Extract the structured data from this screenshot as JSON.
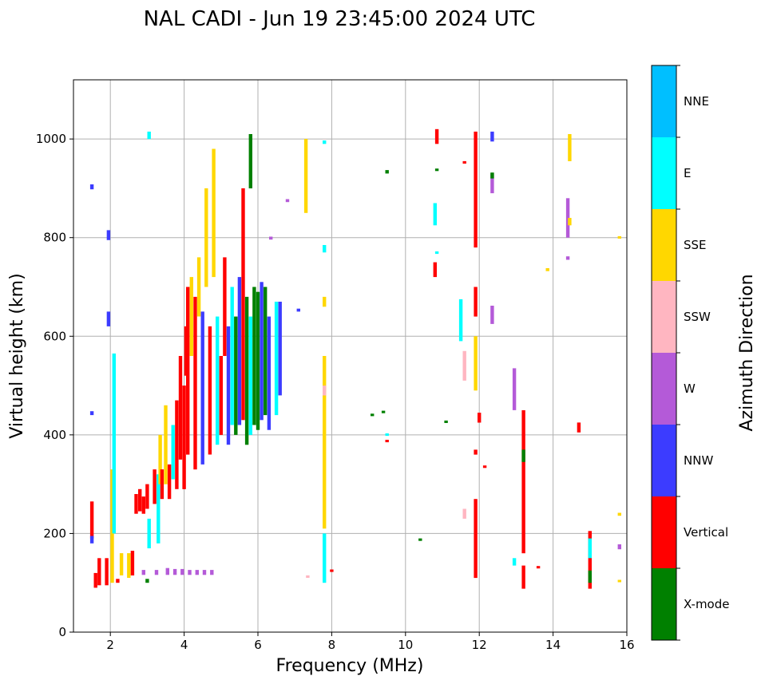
{
  "chart_data": {
    "type": "scatter",
    "title": "NAL CADI - Jun 19 23:45:00 2024 UTC",
    "xlabel": "Frequency (MHz)",
    "ylabel": "Virtual height (km)",
    "xlim": [
      1,
      16
    ],
    "ylim": [
      0,
      1120
    ],
    "xticks": [
      2,
      4,
      6,
      8,
      10,
      12,
      14,
      16
    ],
    "yticks": [
      0,
      200,
      400,
      600,
      800,
      1000
    ],
    "grid": true,
    "colorbar": {
      "label": "Azimuth Direction",
      "categories": [
        {
          "name": "X-mode",
          "color": "#008000"
        },
        {
          "name": "Vertical",
          "color": "#ff0000"
        },
        {
          "name": "NNW",
          "color": "#3c3cff"
        },
        {
          "name": "W",
          "color": "#b45ad8"
        },
        {
          "name": "SSW",
          "color": "#ffb6c1"
        },
        {
          "name": "SSE",
          "color": "#ffd700"
        },
        {
          "name": "E",
          "color": "#00ffff"
        },
        {
          "name": "NNE",
          "color": "#00bfff"
        }
      ]
    },
    "segments": [
      {
        "f": 1.5,
        "h0": 190,
        "h1": 265,
        "c": "Vertical"
      },
      {
        "f": 1.5,
        "h0": 180,
        "h1": 195,
        "c": "NNW"
      },
      {
        "f": 1.5,
        "h0": 440,
        "h1": 448,
        "c": "NNW"
      },
      {
        "f": 1.5,
        "h0": 898,
        "h1": 908,
        "c": "NNW"
      },
      {
        "f": 1.6,
        "h0": 90,
        "h1": 120,
        "c": "Vertical"
      },
      {
        "f": 1.7,
        "h0": 95,
        "h1": 150,
        "c": "Vertical"
      },
      {
        "f": 1.9,
        "h0": 95,
        "h1": 150,
        "c": "Vertical"
      },
      {
        "f": 1.95,
        "h0": 620,
        "h1": 650,
        "c": "NNW"
      },
      {
        "f": 1.95,
        "h0": 795,
        "h1": 815,
        "c": "NNW"
      },
      {
        "f": 2.05,
        "h0": 100,
        "h1": 330,
        "c": "SSE"
      },
      {
        "f": 2.1,
        "h0": 200,
        "h1": 565,
        "c": "E"
      },
      {
        "f": 2.2,
        "h0": 100,
        "h1": 108,
        "c": "Vertical"
      },
      {
        "f": 2.3,
        "h0": 115,
        "h1": 160,
        "c": "SSE"
      },
      {
        "f": 2.5,
        "h0": 110,
        "h1": 160,
        "c": "SSE"
      },
      {
        "f": 2.6,
        "h0": 115,
        "h1": 165,
        "c": "Vertical"
      },
      {
        "f": 2.7,
        "h0": 240,
        "h1": 280,
        "c": "Vertical"
      },
      {
        "f": 2.8,
        "h0": 245,
        "h1": 290,
        "c": "Vertical"
      },
      {
        "f": 2.9,
        "h0": 240,
        "h1": 275,
        "c": "Vertical"
      },
      {
        "f": 2.9,
        "h0": 116,
        "h1": 126,
        "c": "W"
      },
      {
        "f": 3.0,
        "h0": 250,
        "h1": 300,
        "c": "Vertical"
      },
      {
        "f": 3.0,
        "h0": 100,
        "h1": 108,
        "c": "X-mode"
      },
      {
        "f": 3.05,
        "h0": 170,
        "h1": 230,
        "c": "E"
      },
      {
        "f": 3.05,
        "h0": 1000,
        "h1": 1015,
        "c": "E"
      },
      {
        "f": 3.2,
        "h0": 260,
        "h1": 330,
        "c": "Vertical"
      },
      {
        "f": 3.25,
        "h0": 116,
        "h1": 126,
        "c": "W"
      },
      {
        "f": 3.3,
        "h0": 180,
        "h1": 320,
        "c": "E"
      },
      {
        "f": 3.35,
        "h0": 300,
        "h1": 400,
        "c": "SSE"
      },
      {
        "f": 3.4,
        "h0": 270,
        "h1": 330,
        "c": "Vertical"
      },
      {
        "f": 3.5,
        "h0": 300,
        "h1": 460,
        "c": "SSE"
      },
      {
        "f": 3.55,
        "h0": 116,
        "h1": 130,
        "c": "W"
      },
      {
        "f": 3.6,
        "h0": 270,
        "h1": 340,
        "c": "Vertical"
      },
      {
        "f": 3.7,
        "h0": 310,
        "h1": 420,
        "c": "E"
      },
      {
        "f": 3.75,
        "h0": 116,
        "h1": 128,
        "c": "W"
      },
      {
        "f": 3.8,
        "h0": 290,
        "h1": 470,
        "c": "Vertical"
      },
      {
        "f": 3.9,
        "h0": 350,
        "h1": 560,
        "c": "Vertical"
      },
      {
        "f": 3.95,
        "h0": 116,
        "h1": 128,
        "c": "W"
      },
      {
        "f": 4.0,
        "h0": 290,
        "h1": 500,
        "c": "Vertical"
      },
      {
        "f": 4.05,
        "h0": 520,
        "h1": 620,
        "c": "Vertical"
      },
      {
        "f": 4.1,
        "h0": 360,
        "h1": 700,
        "c": "Vertical"
      },
      {
        "f": 4.15,
        "h0": 116,
        "h1": 126,
        "c": "W"
      },
      {
        "f": 4.2,
        "h0": 560,
        "h1": 720,
        "c": "SSE"
      },
      {
        "f": 4.3,
        "h0": 330,
        "h1": 680,
        "c": "Vertical"
      },
      {
        "f": 4.35,
        "h0": 116,
        "h1": 126,
        "c": "W"
      },
      {
        "f": 4.4,
        "h0": 640,
        "h1": 760,
        "c": "SSE"
      },
      {
        "f": 4.5,
        "h0": 340,
        "h1": 650,
        "c": "NNW"
      },
      {
        "f": 4.55,
        "h0": 116,
        "h1": 126,
        "c": "W"
      },
      {
        "f": 4.6,
        "h0": 700,
        "h1": 900,
        "c": "SSE"
      },
      {
        "f": 4.7,
        "h0": 360,
        "h1": 620,
        "c": "Vertical"
      },
      {
        "f": 4.75,
        "h0": 116,
        "h1": 126,
        "c": "W"
      },
      {
        "f": 4.8,
        "h0": 720,
        "h1": 980,
        "c": "SSE"
      },
      {
        "f": 4.9,
        "h0": 380,
        "h1": 640,
        "c": "E"
      },
      {
        "f": 5.0,
        "h0": 400,
        "h1": 560,
        "c": "Vertical"
      },
      {
        "f": 5.1,
        "h0": 560,
        "h1": 760,
        "c": "Vertical"
      },
      {
        "f": 5.2,
        "h0": 380,
        "h1": 620,
        "c": "NNW"
      },
      {
        "f": 5.3,
        "h0": 420,
        "h1": 700,
        "c": "E"
      },
      {
        "f": 5.4,
        "h0": 400,
        "h1": 640,
        "c": "X-mode"
      },
      {
        "f": 5.5,
        "h0": 420,
        "h1": 720,
        "c": "NNW"
      },
      {
        "f": 5.6,
        "h0": 430,
        "h1": 900,
        "c": "Vertical"
      },
      {
        "f": 5.7,
        "h0": 380,
        "h1": 680,
        "c": "X-mode"
      },
      {
        "f": 5.8,
        "h0": 400,
        "h1": 640,
        "c": "E"
      },
      {
        "f": 5.8,
        "h0": 900,
        "h1": 1010,
        "c": "X-mode"
      },
      {
        "f": 5.9,
        "h0": 420,
        "h1": 700,
        "c": "X-mode"
      },
      {
        "f": 6.0,
        "h0": 410,
        "h1": 690,
        "c": "X-mode"
      },
      {
        "f": 6.1,
        "h0": 430,
        "h1": 710,
        "c": "NNW"
      },
      {
        "f": 6.2,
        "h0": 440,
        "h1": 700,
        "c": "X-mode"
      },
      {
        "f": 6.3,
        "h0": 410,
        "h1": 640,
        "c": "NNW"
      },
      {
        "f": 6.35,
        "h0": 796,
        "h1": 802,
        "c": "W"
      },
      {
        "f": 6.5,
        "h0": 440,
        "h1": 670,
        "c": "E"
      },
      {
        "f": 6.6,
        "h0": 480,
        "h1": 670,
        "c": "NNW"
      },
      {
        "f": 6.8,
        "h0": 872,
        "h1": 878,
        "c": "W"
      },
      {
        "f": 7.1,
        "h0": 650,
        "h1": 656,
        "c": "NNW"
      },
      {
        "f": 7.3,
        "h0": 850,
        "h1": 1000,
        "c": "SSE"
      },
      {
        "f": 7.35,
        "h0": 110,
        "h1": 115,
        "c": "SSW"
      },
      {
        "f": 7.8,
        "h0": 100,
        "h1": 200,
        "c": "E"
      },
      {
        "f": 7.8,
        "h0": 210,
        "h1": 560,
        "c": "SSE"
      },
      {
        "f": 7.8,
        "h0": 480,
        "h1": 500,
        "c": "SSW"
      },
      {
        "f": 7.8,
        "h0": 660,
        "h1": 680,
        "c": "SSE"
      },
      {
        "f": 7.8,
        "h0": 770,
        "h1": 785,
        "c": "E"
      },
      {
        "f": 7.8,
        "h0": 990,
        "h1": 997,
        "c": "E"
      },
      {
        "f": 8.0,
        "h0": 122,
        "h1": 127,
        "c": "Vertical"
      },
      {
        "f": 9.1,
        "h0": 438,
        "h1": 443,
        "c": "X-mode"
      },
      {
        "f": 9.4,
        "h0": 444,
        "h1": 449,
        "c": "X-mode"
      },
      {
        "f": 9.5,
        "h0": 385,
        "h1": 390,
        "c": "Vertical"
      },
      {
        "f": 9.5,
        "h0": 398,
        "h1": 403,
        "c": "E"
      },
      {
        "f": 9.5,
        "h0": 930,
        "h1": 937,
        "c": "X-mode"
      },
      {
        "f": 10.4,
        "h0": 185,
        "h1": 190,
        "c": "X-mode"
      },
      {
        "f": 10.8,
        "h0": 720,
        "h1": 750,
        "c": "Vertical"
      },
      {
        "f": 10.8,
        "h0": 825,
        "h1": 870,
        "c": "E"
      },
      {
        "f": 10.85,
        "h0": 990,
        "h1": 1020,
        "c": "Vertical"
      },
      {
        "f": 10.85,
        "h0": 935,
        "h1": 940,
        "c": "X-mode"
      },
      {
        "f": 10.85,
        "h0": 767,
        "h1": 772,
        "c": "E"
      },
      {
        "f": 11.1,
        "h0": 424,
        "h1": 429,
        "c": "X-mode"
      },
      {
        "f": 11.5,
        "h0": 590,
        "h1": 675,
        "c": "E"
      },
      {
        "f": 11.6,
        "h0": 230,
        "h1": 250,
        "c": "SSW"
      },
      {
        "f": 11.6,
        "h0": 510,
        "h1": 570,
        "c": "SSW"
      },
      {
        "f": 11.6,
        "h0": 950,
        "h1": 955,
        "c": "Vertical"
      },
      {
        "f": 11.9,
        "h0": 110,
        "h1": 270,
        "c": "Vertical"
      },
      {
        "f": 11.9,
        "h0": 360,
        "h1": 370,
        "c": "Vertical"
      },
      {
        "f": 11.9,
        "h0": 490,
        "h1": 600,
        "c": "SSE"
      },
      {
        "f": 11.9,
        "h0": 640,
        "h1": 700,
        "c": "Vertical"
      },
      {
        "f": 11.9,
        "h0": 780,
        "h1": 1015,
        "c": "Vertical"
      },
      {
        "f": 12.0,
        "h0": 425,
        "h1": 445,
        "c": "Vertical"
      },
      {
        "f": 12.15,
        "h0": 333,
        "h1": 338,
        "c": "Vertical"
      },
      {
        "f": 12.35,
        "h0": 995,
        "h1": 1015,
        "c": "NNW"
      },
      {
        "f": 12.35,
        "h0": 890,
        "h1": 930,
        "c": "W"
      },
      {
        "f": 12.35,
        "h0": 920,
        "h1": 932,
        "c": "X-mode"
      },
      {
        "f": 12.35,
        "h0": 625,
        "h1": 662,
        "c": "W"
      },
      {
        "f": 12.95,
        "h0": 135,
        "h1": 150,
        "c": "E"
      },
      {
        "f": 12.95,
        "h0": 450,
        "h1": 535,
        "c": "W"
      },
      {
        "f": 13.2,
        "h0": 88,
        "h1": 135,
        "c": "Vertical"
      },
      {
        "f": 13.2,
        "h0": 160,
        "h1": 450,
        "c": "Vertical"
      },
      {
        "f": 13.2,
        "h0": 345,
        "h1": 370,
        "c": "X-mode"
      },
      {
        "f": 13.6,
        "h0": 130,
        "h1": 134,
        "c": "Vertical"
      },
      {
        "f": 13.85,
        "h0": 732,
        "h1": 738,
        "c": "SSE"
      },
      {
        "f": 14.4,
        "h0": 755,
        "h1": 762,
        "c": "W"
      },
      {
        "f": 14.4,
        "h0": 800,
        "h1": 880,
        "c": "W"
      },
      {
        "f": 14.45,
        "h0": 825,
        "h1": 840,
        "c": "SSE"
      },
      {
        "f": 14.45,
        "h0": 955,
        "h1": 1010,
        "c": "SSE"
      },
      {
        "f": 14.7,
        "h0": 405,
        "h1": 425,
        "c": "Vertical"
      },
      {
        "f": 15.0,
        "h0": 88,
        "h1": 205,
        "c": "Vertical"
      },
      {
        "f": 15.0,
        "h0": 100,
        "h1": 125,
        "c": "X-mode"
      },
      {
        "f": 15.0,
        "h0": 150,
        "h1": 190,
        "c": "E"
      },
      {
        "f": 15.8,
        "h0": 102,
        "h1": 106,
        "c": "SSE"
      },
      {
        "f": 15.8,
        "h0": 168,
        "h1": 178,
        "c": "W"
      },
      {
        "f": 15.8,
        "h0": 236,
        "h1": 242,
        "c": "SSE"
      },
      {
        "f": 15.8,
        "h0": 798,
        "h1": 803,
        "c": "SSE"
      }
    ]
  }
}
